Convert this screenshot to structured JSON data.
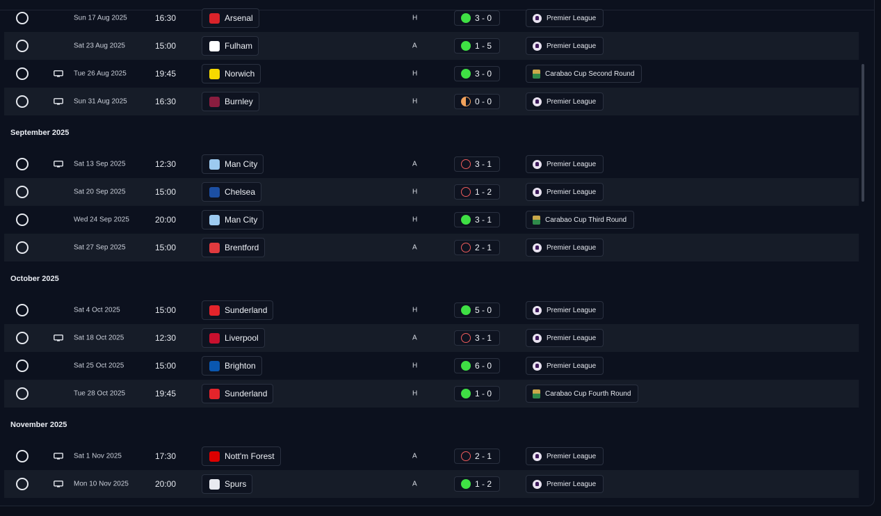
{
  "months": [
    {
      "label": "",
      "matches": [
        {
          "tv": false,
          "date": "Sun 17 Aug 2025",
          "time": "16:30",
          "opponent": "Arsenal",
          "crest_color": "#d9232a",
          "venue": "H",
          "result": "w",
          "score": "3 - 0",
          "competition": "Premier League",
          "comp_icon": "premier-league-icon"
        },
        {
          "tv": false,
          "date": "Sat 23 Aug 2025",
          "time": "15:00",
          "opponent": "Fulham",
          "crest_color": "#ffffff",
          "venue": "A",
          "result": "w",
          "score": "1 - 5",
          "competition": "Premier League",
          "comp_icon": "premier-league-icon"
        },
        {
          "tv": true,
          "date": "Tue 26 Aug 2025",
          "time": "19:45",
          "opponent": "Norwich",
          "crest_color": "#f6d900",
          "venue": "H",
          "result": "w",
          "score": "3 - 0",
          "competition": "Carabao Cup Second Round",
          "comp_icon": "carabao-cup-icon"
        },
        {
          "tv": true,
          "date": "Sun 31 Aug 2025",
          "time": "16:30",
          "opponent": "Burnley",
          "crest_color": "#8a1d3f",
          "venue": "H",
          "result": "d",
          "score": "0 - 0",
          "competition": "Premier League",
          "comp_icon": "premier-league-icon"
        }
      ]
    },
    {
      "label": "September 2025",
      "matches": [
        {
          "tv": true,
          "date": "Sat 13 Sep 2025",
          "time": "12:30",
          "opponent": "Man City",
          "crest_color": "#9ccaf0",
          "venue": "A",
          "result": "l",
          "score": "3 - 1",
          "competition": "Premier League",
          "comp_icon": "premier-league-icon"
        },
        {
          "tv": false,
          "date": "Sat 20 Sep 2025",
          "time": "15:00",
          "opponent": "Chelsea",
          "crest_color": "#1c4fa3",
          "venue": "H",
          "result": "l",
          "score": "1 - 2",
          "competition": "Premier League",
          "comp_icon": "premier-league-icon"
        },
        {
          "tv": false,
          "date": "Wed 24 Sep 2025",
          "time": "20:00",
          "opponent": "Man City",
          "crest_color": "#9ccaf0",
          "venue": "H",
          "result": "w",
          "score": "3 - 1",
          "competition": "Carabao Cup Third Round",
          "comp_icon": "carabao-cup-icon"
        },
        {
          "tv": false,
          "date": "Sat 27 Sep 2025",
          "time": "15:00",
          "opponent": "Brentford",
          "crest_color": "#e03a3e",
          "venue": "A",
          "result": "l",
          "score": "2 - 1",
          "competition": "Premier League",
          "comp_icon": "premier-league-icon"
        }
      ]
    },
    {
      "label": "October 2025",
      "matches": [
        {
          "tv": false,
          "date": "Sat 4 Oct 2025",
          "time": "15:00",
          "opponent": "Sunderland",
          "crest_color": "#e4242b",
          "venue": "H",
          "result": "w",
          "score": "5 - 0",
          "competition": "Premier League",
          "comp_icon": "premier-league-icon"
        },
        {
          "tv": true,
          "date": "Sat 18 Oct 2025",
          "time": "12:30",
          "opponent": "Liverpool",
          "crest_color": "#c8102e",
          "venue": "A",
          "result": "l",
          "score": "3 - 1",
          "competition": "Premier League",
          "comp_icon": "premier-league-icon"
        },
        {
          "tv": false,
          "date": "Sat 25 Oct 2025",
          "time": "15:00",
          "opponent": "Brighton",
          "crest_color": "#0a57b0",
          "venue": "H",
          "result": "w",
          "score": "6 - 0",
          "competition": "Premier League",
          "comp_icon": "premier-league-icon"
        },
        {
          "tv": false,
          "date": "Tue 28 Oct 2025",
          "time": "19:45",
          "opponent": "Sunderland",
          "crest_color": "#e4242b",
          "venue": "H",
          "result": "w",
          "score": "1 - 0",
          "competition": "Carabao Cup Fourth Round",
          "comp_icon": "carabao-cup-icon"
        }
      ]
    },
    {
      "label": "November 2025",
      "matches": [
        {
          "tv": true,
          "date": "Sat 1 Nov 2025",
          "time": "17:30",
          "opponent": "Nott'm Forest",
          "crest_color": "#dd0000",
          "venue": "A",
          "result": "l",
          "score": "2 - 1",
          "competition": "Premier League",
          "comp_icon": "premier-league-icon"
        },
        {
          "tv": true,
          "date": "Mon 10 Nov 2025",
          "time": "20:00",
          "opponent": "Spurs",
          "crest_color": "#e8eaf0",
          "venue": "A",
          "result": "w",
          "score": "1 - 2",
          "competition": "Premier League",
          "comp_icon": "premier-league-icon"
        }
      ]
    }
  ]
}
